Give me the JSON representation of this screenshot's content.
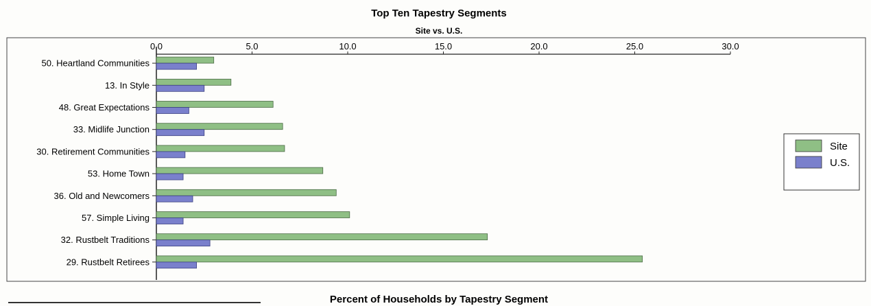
{
  "chart_data": {
    "type": "bar",
    "orientation": "horizontal",
    "title": "Top Ten Tapestry Segments",
    "subtitle": "Site vs. U.S.",
    "categories": [
      "50. Heartland Communities",
      "13. In Style",
      "48. Great Expectations",
      "33. Midlife Junction",
      "30. Retirement Communities",
      "53. Home Town",
      "36. Old and Newcomers",
      "57. Simple Living",
      "32. Rustbelt Traditions",
      "29. Rustbelt Retirees"
    ],
    "series": [
      {
        "name": "Site",
        "color": "#8fbf85",
        "values": [
          3.0,
          3.9,
          6.1,
          6.6,
          6.7,
          8.7,
          9.4,
          10.1,
          17.3,
          25.4
        ]
      },
      {
        "name": "U.S.",
        "color": "#7a80cc",
        "values": [
          2.1,
          2.5,
          1.7,
          2.5,
          1.5,
          1.4,
          1.9,
          1.4,
          2.8,
          2.1
        ]
      }
    ],
    "xlim": [
      0,
      30
    ],
    "xticks": [
      "0.0",
      "5.0",
      "10.0",
      "15.0",
      "20.0",
      "25.0",
      "30.0"
    ],
    "x_axis_position": "top",
    "grid": false,
    "legend_position": "right"
  },
  "footer": {
    "title": "Percent of Households by Tapestry Segment"
  }
}
